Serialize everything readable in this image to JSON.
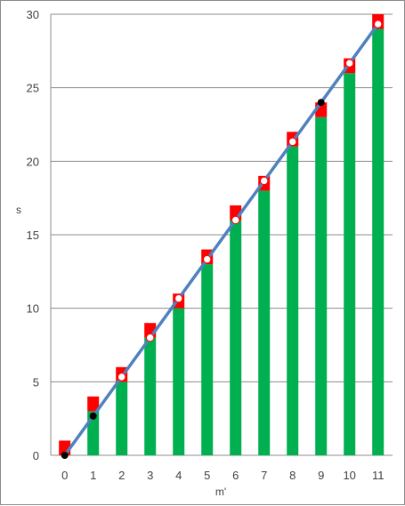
{
  "chart_data": {
    "type": "bar",
    "xlabel": "m'",
    "ylabel": "s",
    "ylim": [
      0,
      30
    ],
    "yticks": [
      0,
      5,
      10,
      15,
      20,
      25,
      30
    ],
    "categories": [
      "0",
      "1",
      "2",
      "3",
      "4",
      "5",
      "6",
      "7",
      "8",
      "9",
      "10",
      "11"
    ],
    "grid": "horizontal",
    "legend": "none",
    "series": [
      {
        "type": "bar-stacked",
        "color": "#00b050",
        "values": [
          0,
          3,
          5,
          8,
          10,
          13,
          16,
          18,
          21,
          23,
          26,
          29
        ]
      },
      {
        "type": "bar-stacked",
        "color": "#ff0000",
        "values": [
          1,
          1,
          1,
          1,
          1,
          1,
          1,
          1,
          1,
          1,
          1,
          1
        ]
      },
      {
        "type": "line",
        "color": "#4f81bd",
        "x": [
          0,
          11
        ],
        "y": [
          0,
          29.33
        ]
      },
      {
        "type": "marker",
        "marker": "open-circle",
        "color": "#ffffff",
        "x": [
          2,
          3,
          4,
          5,
          6,
          7,
          8,
          10,
          11
        ],
        "y": [
          5.33,
          8.0,
          10.67,
          13.33,
          16.0,
          18.67,
          21.33,
          26.67,
          29.33
        ]
      },
      {
        "type": "marker",
        "marker": "filled-circle",
        "color": "#000000",
        "x": [
          0,
          1,
          9
        ],
        "y": [
          0,
          2.67,
          24.0
        ]
      }
    ]
  }
}
